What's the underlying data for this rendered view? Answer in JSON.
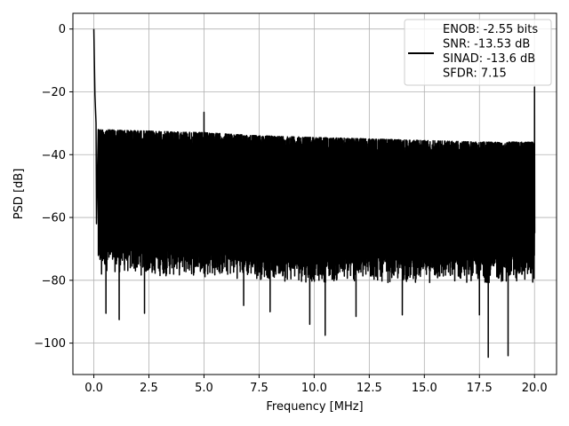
{
  "chart_data": {
    "type": "line",
    "title": "",
    "xlabel": "Frequency [MHz]",
    "ylabel": "PSD [dB]",
    "xlim": [
      -0.95,
      21.0
    ],
    "ylim": [
      -110,
      5
    ],
    "xticks": [
      0.0,
      2.5,
      5.0,
      7.5,
      10.0,
      12.5,
      15.0,
      17.5,
      20.0
    ],
    "xtick_labels": [
      "0.0",
      "2.5",
      "5.0",
      "7.5",
      "10.0",
      "12.5",
      "15.0",
      "17.5",
      "20.0"
    ],
    "yticks": [
      0,
      -20,
      -40,
      -60,
      -80,
      -100
    ],
    "ytick_labels": [
      "0",
      "−20",
      "−40",
      "−60",
      "−80",
      "−100"
    ],
    "grid": true,
    "legend": {
      "placement": "top-right",
      "entries": [
        "ENOB: -2.55 bits",
        "SNR: -13.53 dB",
        "SINAD: -13.6 dB",
        "SFDR: 7.15"
      ]
    },
    "series": [
      {
        "color": "#000000",
        "line_style": "solid",
        "description_points": {
          "x": [
            0.0,
            0.05,
            0.1,
            0.2,
            5.0,
            20.0
          ],
          "y": [
            0.0,
            -21,
            -30,
            -32,
            -26.5,
            -18.5
          ]
        },
        "envelope": {
          "x": [
            0.2,
            2.5,
            5.0,
            7.5,
            10.0,
            12.5,
            15.0,
            17.5,
            20.0
          ],
          "upper": [
            -32,
            -32.5,
            -33,
            -34,
            -34.5,
            -35,
            -35.5,
            -36,
            -36
          ],
          "lower": [
            -73,
            -75,
            -75,
            -76,
            -77,
            -77,
            -77,
            -77,
            -77
          ]
        },
        "notable_minima": {
          "x": [
            0.35,
            0.55,
            1.15,
            2.3,
            6.8,
            8.0,
            9.8,
            10.5,
            11.9,
            14.0,
            17.5,
            17.9,
            18.8
          ],
          "y": [
            -78,
            -90.5,
            -92.5,
            -90.5,
            -88,
            -90,
            -94,
            -97.5,
            -91.5,
            -91,
            -91,
            -104.5,
            -104
          ]
        }
      }
    ]
  }
}
